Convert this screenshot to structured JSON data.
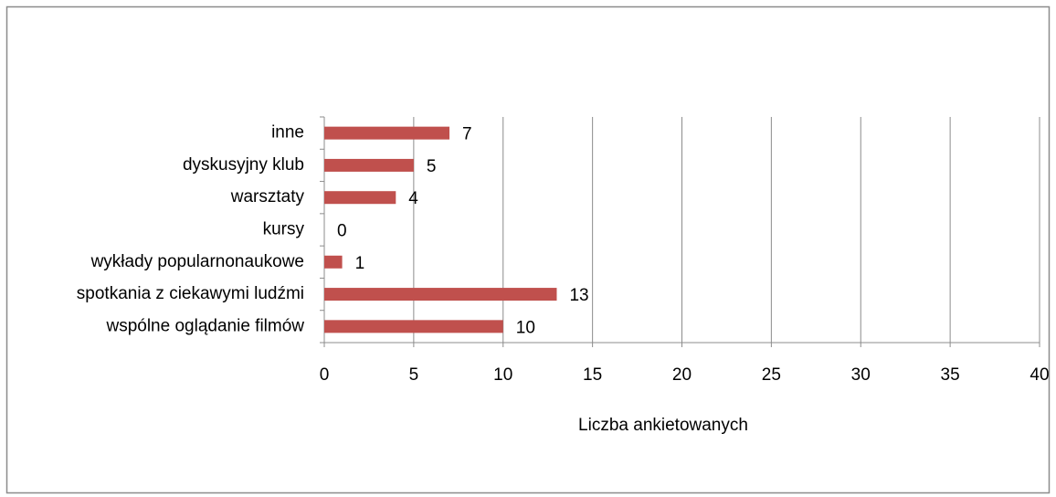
{
  "chart_data": {
    "type": "bar",
    "orientation": "horizontal",
    "x_label": "Liczba ankietowanych",
    "categories": [
      "inne",
      "dyskusyjny klub",
      "warsztaty",
      "kursy",
      "wykłady popularnonaukowe",
      "spotkania z ciekawymi ludźmi",
      "wspólne oglądanie filmów"
    ],
    "values": [
      7,
      5,
      4,
      0,
      1,
      13,
      10
    ],
    "color": "#c0504d",
    "xlim": [
      0,
      40
    ],
    "xticks": [
      0,
      5,
      10,
      15,
      20,
      25,
      30,
      35,
      40
    ],
    "grid": true
  }
}
